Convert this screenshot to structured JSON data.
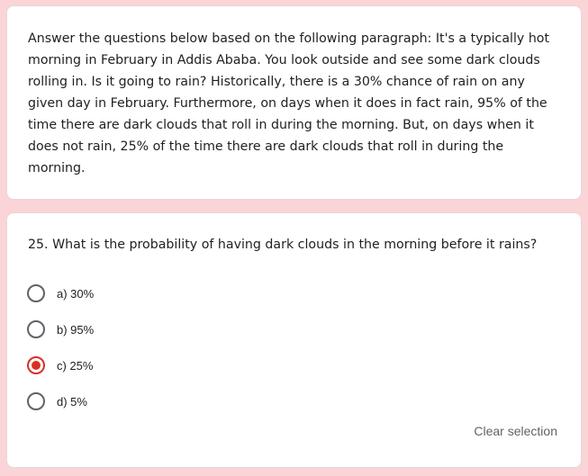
{
  "description": {
    "text": "Answer the questions below based on the following paragraph: It's a typically hot morning in February in Addis Ababa. You look outside and see some dark clouds rolling in. Is it going to rain? Historically, there is a 30% chance of rain on any given day in February. Furthermore, on days when it does in fact rain, 95% of the time there are dark clouds that roll in during the morning. But, on days when it does not rain, 25% of the time there are dark clouds that roll in during the morning."
  },
  "question": {
    "text": "25. What is the probability of having dark clouds in the morning before it rains?",
    "options": [
      {
        "label": "a) 30%",
        "selected": false
      },
      {
        "label": "b) 95%",
        "selected": false
      },
      {
        "label": "c) 25%",
        "selected": true
      },
      {
        "label": "d) 5%",
        "selected": false
      }
    ],
    "clear_label": "Clear selection"
  },
  "colors": {
    "background": "#fad4d7",
    "accent": "#d93025",
    "text": "#202124",
    "muted": "#5f6368"
  }
}
